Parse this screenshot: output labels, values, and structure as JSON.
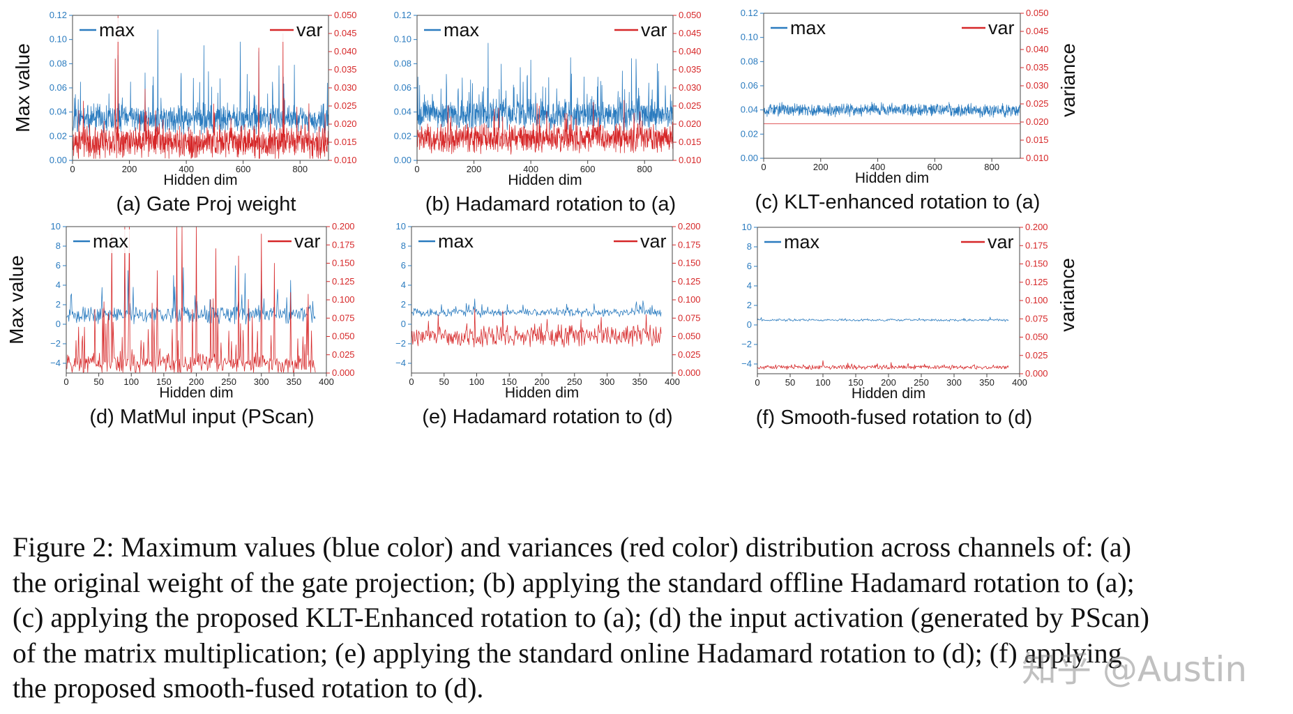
{
  "chart_data": [
    {
      "id": "a",
      "type": "line",
      "caption": "(a) Gate Proj weight",
      "xlabel": "Hidden dim",
      "ylabel": "Max value",
      "y2label": "",
      "x_range": [
        0,
        900
      ],
      "ylim": [
        0.0,
        0.12
      ],
      "y2lim": [
        0.01,
        0.05
      ],
      "x_ticks": [
        "0",
        "200",
        "400",
        "600",
        "800"
      ],
      "y_ticks": [
        "0.00",
        "0.02",
        "0.04",
        "0.06",
        "0.08",
        "0.10",
        "0.12"
      ],
      "y2_ticks": [
        "0.010",
        "0.015",
        "0.020",
        "0.025",
        "0.030",
        "0.035",
        "0.040",
        "0.045",
        "0.050"
      ],
      "legend_left": "max",
      "legend_right": "var",
      "series": [
        {
          "name": "max",
          "axis": "left",
          "color": "#2a7bbf",
          "n": 900,
          "seed": 11,
          "base": 0.034,
          "noise": 0.009,
          "spike_prob": 0.05,
          "spike_max": 0.04,
          "clip": [
            0.018,
            0.12
          ],
          "peaks": [
            [
              160,
              0.087
            ],
            [
              300,
              0.108
            ],
            [
              462,
              0.095
            ],
            [
              590,
              0.098
            ],
            [
              655,
              0.09
            ],
            [
              780,
              0.079
            ]
          ]
        },
        {
          "name": "var",
          "axis": "right",
          "color": "#d62728",
          "n": 900,
          "seed": 23,
          "base": 0.015,
          "noise": 0.0035,
          "spike_prob": 0.04,
          "spike_max": 0.012,
          "clip": [
            0.0105,
            0.05
          ],
          "peaks": [
            [
              150,
              0.038
            ],
            [
              160,
              0.05
            ],
            [
              655,
              0.041
            ],
            [
              740,
              0.045
            ]
          ]
        }
      ]
    },
    {
      "id": "b",
      "type": "line",
      "caption": "(b) Hadamard rotation to (a)",
      "xlabel": "Hidden dim",
      "ylabel": "",
      "y2label": "",
      "x_range": [
        0,
        900
      ],
      "ylim": [
        0.0,
        0.12
      ],
      "y2lim": [
        0.01,
        0.05
      ],
      "x_ticks": [
        "0",
        "200",
        "400",
        "600",
        "800"
      ],
      "y_ticks": [
        "0.00",
        "0.02",
        "0.04",
        "0.06",
        "0.08",
        "0.10",
        "0.12"
      ],
      "y2_ticks": [
        "0.010",
        "0.015",
        "0.020",
        "0.025",
        "0.030",
        "0.035",
        "0.040",
        "0.045",
        "0.050"
      ],
      "legend_left": "max",
      "legend_right": "var",
      "series": [
        {
          "name": "max",
          "axis": "left",
          "color": "#2a7bbf",
          "n": 900,
          "seed": 37,
          "base": 0.038,
          "noise": 0.01,
          "spike_prob": 0.1,
          "spike_max": 0.035,
          "clip": [
            0.022,
            0.12
          ],
          "peaks": [
            [
              250,
              0.097
            ],
            [
              400,
              0.083
            ],
            [
              540,
              0.085
            ],
            [
              845,
              0.08
            ]
          ]
        },
        {
          "name": "var",
          "axis": "right",
          "color": "#d62728",
          "n": 900,
          "seed": 41,
          "base": 0.016,
          "noise": 0.003,
          "spike_prob": 0.06,
          "spike_max": 0.008,
          "clip": [
            0.0115,
            0.05
          ],
          "peaks": [
            [
              620,
              0.026
            ],
            [
              430,
              0.025
            ]
          ]
        }
      ]
    },
    {
      "id": "c",
      "type": "line",
      "caption": "(c) KLT-enhanced rotation to (a)",
      "xlabel": "Hidden dim",
      "ylabel": "",
      "y2label": "variance",
      "x_range": [
        0,
        900
      ],
      "ylim": [
        0.0,
        0.12
      ],
      "y2lim": [
        0.01,
        0.05
      ],
      "x_ticks": [
        "0",
        "200",
        "400",
        "600",
        "800"
      ],
      "y_ticks": [
        "0.00",
        "0.02",
        "0.04",
        "0.06",
        "0.08",
        "0.10",
        "0.12"
      ],
      "y2_ticks": [
        "0.010",
        "0.015",
        "0.020",
        "0.025",
        "0.030",
        "0.035",
        "0.040",
        "0.045",
        "0.050"
      ],
      "legend_left": "max",
      "legend_right": "var",
      "series": [
        {
          "name": "max",
          "axis": "left",
          "color": "#2a7bbf",
          "n": 900,
          "seed": 53,
          "base": 0.04,
          "noise": 0.0045,
          "spike_prob": 0.0,
          "spike_max": 0.0,
          "clip": [
            0.031,
            0.05
          ],
          "peaks": []
        },
        {
          "name": "var",
          "axis": "right",
          "color": "#d62728",
          "n": 900,
          "seed": 59,
          "base": 0.0195,
          "noise": 0.0,
          "spike_prob": 0.0,
          "spike_max": 0.0,
          "clip": [
            0.0195,
            0.0195
          ],
          "peaks": []
        }
      ]
    },
    {
      "id": "d",
      "type": "line",
      "caption": "(d) MatMul input (PScan)",
      "xlabel": "Hidden dim",
      "ylabel": "Max value",
      "y2label": "",
      "x_range": [
        0,
        400
      ],
      "ylim": [
        -5,
        10
      ],
      "y2lim": [
        0.0,
        0.2
      ],
      "x_ticks": [
        "0",
        "50",
        "100",
        "150",
        "200",
        "250",
        "300",
        "350",
        "400"
      ],
      "y_ticks": [
        "−4",
        "−2",
        "0",
        "2",
        "4",
        "6",
        "8",
        "10"
      ],
      "y2_ticks": [
        "0.000",
        "0.025",
        "0.050",
        "0.075",
        "0.100",
        "0.125",
        "0.150",
        "0.175",
        "0.200"
      ],
      "legend_left": "max",
      "legend_right": "var",
      "series": [
        {
          "name": "max",
          "axis": "left",
          "color": "#2a7bbf",
          "n": 384,
          "seed": 67,
          "base": 1.0,
          "noise": 0.7,
          "spike_prob": 0.06,
          "spike_max": 2.5,
          "clip": [
            0.0,
            10
          ],
          "peaks": [
            [
              90,
              6.0
            ],
            [
              95,
              5.5
            ],
            [
              165,
              5.0
            ],
            [
              180,
              5.8
            ],
            [
              260,
              6.0
            ],
            [
              275,
              5.2
            ],
            [
              300,
              5.5
            ],
            [
              345,
              4.5
            ]
          ]
        },
        {
          "name": "var",
          "axis": "right",
          "color": "#d62728",
          "n": 384,
          "seed": 71,
          "base": 0.012,
          "noise": 0.012,
          "spike_prob": 0.12,
          "spike_max": 0.09,
          "clip": [
            0.001,
            0.2
          ],
          "peaks": [
            [
              70,
              0.19
            ],
            [
              90,
              0.2
            ],
            [
              97,
              0.2
            ],
            [
              140,
              0.14
            ],
            [
              170,
              0.2
            ],
            [
              178,
              0.2
            ],
            [
              200,
              0.2
            ],
            [
              230,
              0.17
            ],
            [
              265,
              0.16
            ],
            [
              300,
              0.19
            ],
            [
              320,
              0.15
            ],
            [
              345,
              0.11
            ],
            [
              370,
              0.09
            ]
          ]
        }
      ]
    },
    {
      "id": "e",
      "type": "line",
      "caption": "(e) Hadamard rotation to (d)",
      "xlabel": "Hidden dim",
      "ylabel": "",
      "y2label": "",
      "x_range": [
        0,
        400
      ],
      "ylim": [
        -5,
        10
      ],
      "y2lim": [
        0.0,
        0.2
      ],
      "x_ticks": [
        "0",
        "50",
        "100",
        "150",
        "200",
        "250",
        "300",
        "350",
        "400"
      ],
      "y_ticks": [
        "−4",
        "−2",
        "0",
        "2",
        "4",
        "6",
        "8",
        "10"
      ],
      "y2_ticks": [
        "0.000",
        "0.025",
        "0.050",
        "0.075",
        "0.100",
        "0.125",
        "0.150",
        "0.175",
        "0.200"
      ],
      "legend_left": "max",
      "legend_right": "var",
      "series": [
        {
          "name": "max",
          "axis": "left",
          "color": "#2a7bbf",
          "n": 384,
          "seed": 79,
          "base": 1.2,
          "noise": 0.35,
          "spike_prob": 0.08,
          "spike_max": 0.9,
          "clip": [
            0.6,
            10
          ],
          "peaks": [
            [
              97,
              2.6
            ],
            [
              345,
              2.3
            ],
            [
              355,
              2.4
            ]
          ]
        },
        {
          "name": "var",
          "axis": "right",
          "color": "#d62728",
          "n": 384,
          "seed": 83,
          "base": 0.05,
          "noise": 0.012,
          "spike_prob": 0.08,
          "spike_max": 0.022,
          "clip": [
            0.022,
            0.2
          ],
          "peaks": [
            [
              97,
              0.088
            ],
            [
              360,
              0.08
            ]
          ]
        }
      ]
    },
    {
      "id": "f",
      "type": "line",
      "caption": "(f) Smooth-fused rotation to (d)",
      "xlabel": "Hidden dim",
      "ylabel": "",
      "y2label": "variance",
      "x_range": [
        0,
        400
      ],
      "ylim": [
        -5,
        10
      ],
      "y2lim": [
        0.0,
        0.2
      ],
      "x_ticks": [
        "0",
        "50",
        "100",
        "150",
        "200",
        "250",
        "300",
        "350",
        "400"
      ],
      "y_ticks": [
        "−4",
        "−2",
        "0",
        "2",
        "4",
        "6",
        "8",
        "10"
      ],
      "y2_ticks": [
        "0.000",
        "0.025",
        "0.050",
        "0.075",
        "0.100",
        "0.125",
        "0.150",
        "0.175",
        "0.200"
      ],
      "legend_left": "max",
      "legend_right": "var",
      "series": [
        {
          "name": "max",
          "axis": "left",
          "color": "#2a7bbf",
          "n": 384,
          "seed": 89,
          "base": 0.5,
          "noise": 0.1,
          "spike_prob": 0.05,
          "spike_max": 0.25,
          "clip": [
            0.3,
            10
          ],
          "peaks": [
            [
              355,
              0.8
            ]
          ]
        },
        {
          "name": "var",
          "axis": "right",
          "color": "#d62728",
          "n": 384,
          "seed": 97,
          "base": 0.009,
          "noise": 0.0025,
          "spike_prob": 0.06,
          "spike_max": 0.005,
          "clip": [
            0.005,
            0.2
          ],
          "peaks": [
            [
              100,
              0.018
            ],
            [
              230,
              0.014
            ]
          ]
        }
      ]
    }
  ],
  "caption_lines": [
    "Figure 2: Maximum values (blue color) and variances (red color) distribution across channels of: (a)",
    "the original weight of the gate projection; (b) applying the standard offline Hadamard rotation to (a);",
    "(c) applying the proposed KLT-Enhanced rotation to (a); (d) the input activation (generated by PScan)",
    "of the matrix multiplication; (e) applying the standard online Hadamard rotation to (d); (f) applying",
    "the proposed smooth-fused rotation to (d)."
  ],
  "watermark": "知乎 @Austin",
  "colors": {
    "max": "#2a7bbf",
    "var": "#d62728",
    "axis": "#666666",
    "text": "#111111"
  }
}
